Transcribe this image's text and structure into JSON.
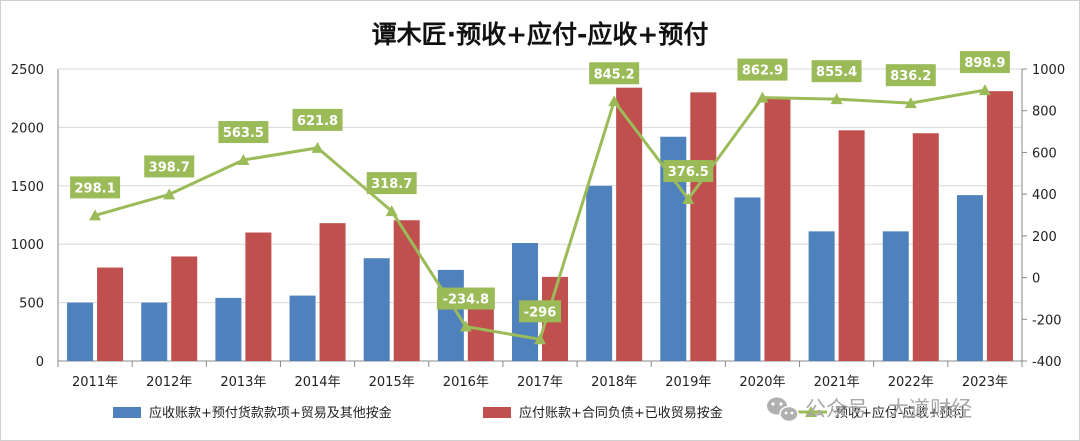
{
  "chart_data": {
    "type": "bar+line",
    "title": "谭木匠·预收+应付-应收+预付",
    "categories": [
      "2011年",
      "2012年",
      "2013年",
      "2014年",
      "2015年",
      "2016年",
      "2017年",
      "2018年",
      "2019年",
      "2020年",
      "2021年",
      "2022年",
      "2023年"
    ],
    "series": [
      {
        "name": "应收账款+预付货款款项+贸易及其他按金",
        "type": "bar",
        "axis": "left",
        "color": "#4f81bd",
        "values": [
          500,
          500,
          540,
          560,
          880,
          780,
          1010,
          1500,
          1920,
          1400,
          1110,
          1110,
          1420
        ]
      },
      {
        "name": "应付账款+合同负债+已收贸易按金",
        "type": "bar",
        "axis": "left",
        "color": "#c0504d",
        "values": [
          800,
          895,
          1100,
          1180,
          1205,
          550,
          720,
          2340,
          2300,
          2250,
          1975,
          1950,
          2310
        ]
      },
      {
        "name": "预收+应付-应收+预付",
        "type": "line",
        "axis": "right",
        "color": "#9bbb59",
        "values": [
          298.1,
          398.7,
          563.5,
          621.8,
          318.7,
          -234.8,
          -296,
          845.2,
          376.5,
          862.9,
          855.4,
          836.2,
          898.9
        ],
        "labels": [
          "298.1",
          "398.7",
          "563.5",
          "621.8",
          "318.7",
          "-234.8",
          "-296",
          "845.2",
          "376.5",
          "862.9",
          "855.4",
          "836.2",
          "898.9"
        ]
      }
    ],
    "y_left": {
      "min": 0,
      "max": 2500,
      "step": 500,
      "ticks": [
        "0",
        "500",
        "1000",
        "1500",
        "2000",
        "2500"
      ]
    },
    "y_right": {
      "min": -400,
      "max": 1000,
      "step": 200,
      "ticks": [
        "-400",
        "-200",
        "0",
        "200",
        "400",
        "600",
        "800",
        "1000"
      ]
    },
    "grid": true,
    "legend_position": "bottom"
  },
  "watermark": "公众号 · 大道财经"
}
